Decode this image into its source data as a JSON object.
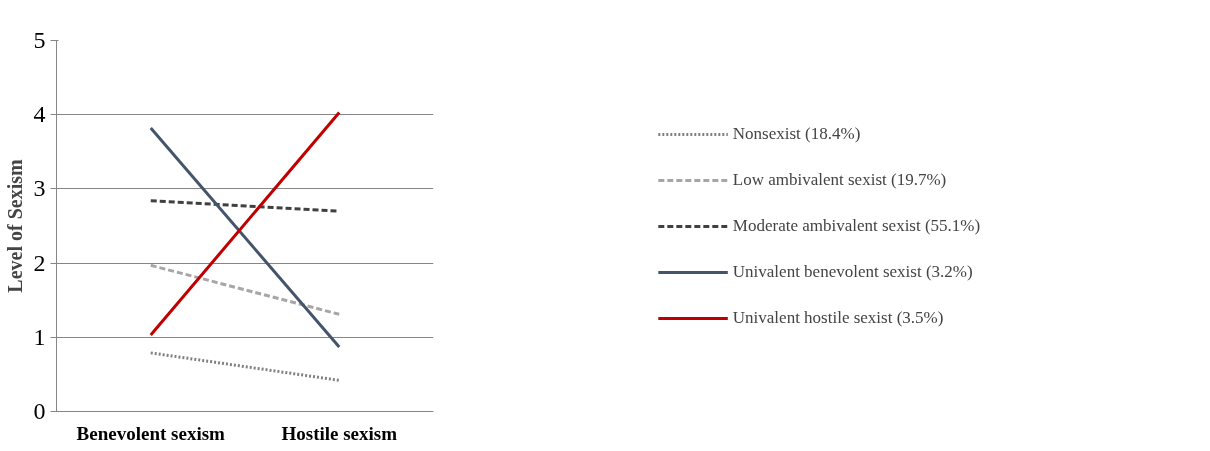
{
  "chart_data": {
    "type": "line",
    "ylabel": "Level of Sexism",
    "categories": [
      "Benevolent sexism",
      "Hostile sexism"
    ],
    "ylim": [
      0,
      5
    ],
    "yticks": [
      0,
      1,
      2,
      3,
      4,
      5
    ],
    "grid": "y",
    "legend": "right",
    "marker": "none",
    "series": [
      {
        "name": "Nonsexist (18.4%)",
        "color": "#808080",
        "line_style": "dotted",
        "values": [
          0.79,
          0.42
        ]
      },
      {
        "name": "Low ambivalent sexist (19.7%)",
        "color": "#a6a6a6",
        "line_style": "dashed",
        "values": [
          1.97,
          1.31
        ]
      },
      {
        "name": "Moderate ambivalent sexist (55.1%)",
        "color": "#404040",
        "line_style": "dashed",
        "values": [
          2.84,
          2.7
        ]
      },
      {
        "name": "Univalent benevolent sexist (3.2%)",
        "color": "#44546a",
        "line_style": "solid",
        "values": [
          3.82,
          0.87
        ]
      },
      {
        "name": "Univalent hostile sexist (3.5%)",
        "color": "#c00000",
        "line_style": "solid",
        "values": [
          1.03,
          4.03
        ]
      }
    ]
  }
}
